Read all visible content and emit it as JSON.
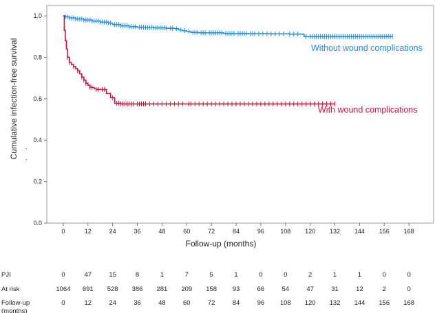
{
  "chart_data": {
    "type": "line",
    "subtype": "kaplan-meier",
    "title": "",
    "xlabel": "Follow-up (months)",
    "ylabel": "Cumulative infection-free survival",
    "ylabel_dots": [
      ".",
      "."
    ],
    "xlim": [
      -8,
      180
    ],
    "ylim": [
      0,
      1.05
    ],
    "x_ticks": [
      0,
      12,
      24,
      36,
      48,
      60,
      72,
      84,
      96,
      108,
      120,
      132,
      144,
      156,
      168
    ],
    "y_ticks": [
      0.0,
      0.2,
      0.4,
      0.6,
      0.8,
      1.0
    ],
    "y_tick_labels": [
      "0.0",
      "0.2",
      "0.4",
      "0.6",
      "0.8",
      "1.0"
    ],
    "series": [
      {
        "name": "Without wound complications",
        "color": "#1f8fe0",
        "step_points": [
          [
            0,
            1.0
          ],
          [
            1,
            0.995
          ],
          [
            3,
            0.99
          ],
          [
            6,
            0.985
          ],
          [
            10,
            0.98
          ],
          [
            14,
            0.975
          ],
          [
            18,
            0.97
          ],
          [
            22,
            0.965
          ],
          [
            24,
            0.958
          ],
          [
            28,
            0.952
          ],
          [
            32,
            0.948
          ],
          [
            36,
            0.945
          ],
          [
            40,
            0.944
          ],
          [
            44,
            0.942
          ],
          [
            50,
            0.94
          ],
          [
            54,
            0.938
          ],
          [
            56,
            0.932
          ],
          [
            58,
            0.928
          ],
          [
            60,
            0.925
          ],
          [
            62,
            0.92
          ],
          [
            66,
            0.918
          ],
          [
            70,
            0.918
          ],
          [
            78,
            0.915
          ],
          [
            84,
            0.915
          ],
          [
            90,
            0.914
          ],
          [
            100,
            0.913
          ],
          [
            110,
            0.912
          ],
          [
            116,
            0.912
          ],
          [
            117,
            0.9
          ],
          [
            160,
            0.9
          ]
        ],
        "censor_x": [
          1,
          2,
          3,
          4,
          5,
          6,
          7,
          8,
          9,
          10,
          11,
          12,
          13,
          14,
          15,
          16,
          17,
          18,
          19,
          20,
          21,
          22,
          23,
          25,
          26,
          27,
          28,
          29,
          30,
          31,
          32,
          33,
          34,
          35,
          37,
          38,
          39,
          40,
          41,
          42,
          43,
          44,
          45,
          46,
          47,
          48,
          49,
          50,
          52,
          53,
          55,
          57,
          59,
          61,
          63,
          64,
          65,
          67,
          68,
          69,
          71,
          72,
          73,
          74,
          75,
          76,
          77,
          79,
          80,
          81,
          82,
          83,
          85,
          86,
          87,
          88,
          89,
          91,
          92,
          93,
          95,
          97,
          99,
          101,
          103,
          105,
          107,
          110,
          112,
          114,
          118,
          120,
          121,
          122,
          123,
          124,
          125,
          126,
          127,
          128,
          129,
          130,
          131,
          132,
          133,
          134,
          135,
          136,
          137,
          138,
          139,
          140,
          141,
          142,
          143,
          144,
          145,
          146,
          147,
          148,
          149,
          150,
          151,
          152,
          153,
          154,
          155,
          156,
          157,
          158,
          159,
          160
        ]
      },
      {
        "name": "With wound complications",
        "color": "#d0103a",
        "step_points": [
          [
            0,
            1.0
          ],
          [
            0.5,
            0.93
          ],
          [
            1,
            0.88
          ],
          [
            1.5,
            0.84
          ],
          [
            2,
            0.8
          ],
          [
            3,
            0.775
          ],
          [
            4,
            0.765
          ],
          [
            5,
            0.755
          ],
          [
            6,
            0.745
          ],
          [
            7,
            0.735
          ],
          [
            8,
            0.72
          ],
          [
            9,
            0.705
          ],
          [
            10,
            0.69
          ],
          [
            11,
            0.675
          ],
          [
            12,
            0.665
          ],
          [
            13,
            0.655
          ],
          [
            15,
            0.648
          ],
          [
            16,
            0.645
          ],
          [
            18,
            0.645
          ],
          [
            20,
            0.645
          ],
          [
            21,
            0.625
          ],
          [
            23,
            0.605
          ],
          [
            25,
            0.578
          ],
          [
            28,
            0.575
          ],
          [
            132,
            0.575
          ]
        ],
        "censor_x": [
          2,
          3,
          5,
          7,
          9,
          10,
          11,
          13,
          14,
          16,
          17,
          19,
          20,
          24,
          26,
          27,
          28,
          29,
          30,
          31,
          32,
          33,
          34,
          36,
          37,
          38,
          39,
          40,
          42,
          44,
          46,
          48,
          50,
          52,
          54,
          56,
          58,
          61,
          62,
          64,
          66,
          68,
          70,
          72,
          74,
          76,
          78,
          80,
          82,
          84,
          86,
          88,
          90,
          92,
          94,
          96,
          98,
          100,
          102,
          104,
          106,
          108,
          110,
          112,
          114,
          116,
          118,
          120,
          122,
          124,
          126,
          128,
          130,
          132
        ]
      }
    ],
    "risk_table": {
      "rows": [
        {
          "label": [
            "PJI"
          ],
          "values": [
            "0",
            "47",
            "15",
            "8",
            "1",
            "7",
            "5",
            "1",
            "0",
            "0",
            "2",
            "1",
            "1",
            "0",
            "0"
          ]
        },
        {
          "label": [
            "At risk"
          ],
          "values": [
            "1064",
            "691",
            "528",
            "386",
            "281",
            "209",
            "158",
            "93",
            "66",
            "54",
            "47",
            "31",
            "12",
            "2",
            "0"
          ]
        },
        {
          "label": [
            "Follow-up",
            "(months)"
          ],
          "values": [
            "0",
            "12",
            "24",
            "36",
            "48",
            "60",
            "72",
            "84",
            "96",
            "108",
            "120",
            "132",
            "144",
            "156",
            "168"
          ]
        }
      ]
    }
  }
}
